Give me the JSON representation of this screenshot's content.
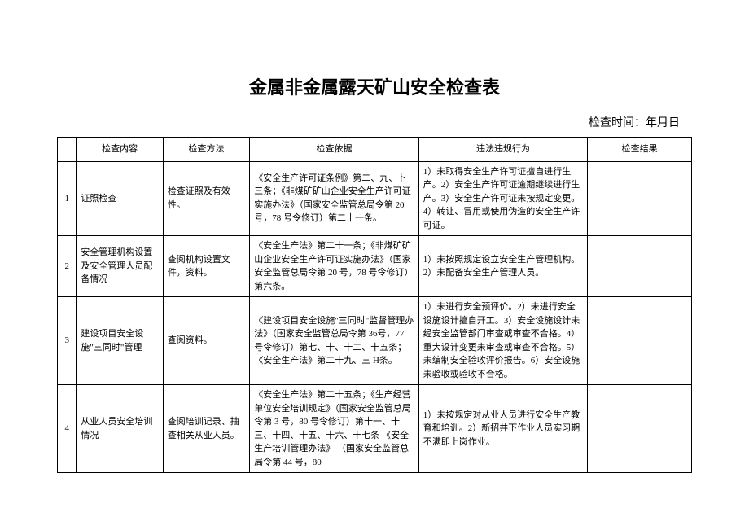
{
  "title": "金属非金属露天矿山安全检查表",
  "check_time_label": "检查时间：年月日",
  "table": {
    "headers": {
      "content": "检查内容",
      "method": "检查方法",
      "basis": "检查依据",
      "violation": "违法违规行为",
      "result": "检查结果"
    },
    "rows": [
      {
        "num": "1",
        "content": "证照检查",
        "method": "检查证照及有效性。",
        "basis": "《安全生产许可证条例》第二、九、卜三条；《非煤矿矿山企业安全生产许可证实施办法》（国家安全监管总局令第 20 号，78 号令修订）第二十一条。",
        "violation": "1）未取得安全生产许可证擅自进行生产。2）安全生产许可证逾期继续进行生产。3）安全生产许可证未按规定变更。4）转让、冒用或使用伪造的安全生产许可证。",
        "result": ""
      },
      {
        "num": "2",
        "content": "安全管理机构设置及安全管理人员配备情况",
        "method": "查阅机构设置文件，资料。",
        "basis": "《安全生产法》第二十一条；《非煤矿矿山企业安全生产许可证实施办法》（国家安全监管总局令第 20 号，78 号令修订）第六条。",
        "violation": "1）未按照规定设立安全生产管理机构。2）未配备安全生产管理人员。",
        "result": ""
      },
      {
        "num": "3",
        "content": "建设项目安全设施\"三同时\"管理",
        "method": "查阅资料。",
        "basis": "《建设项目安全设施\"三同时\"监督管理办法》（国家安全监管总局令第 36号，77 号令修订）第七、十、十二、十五条；《安全生产法》第二十九、三 H条。",
        "violation": "1）未进行安全预评价。2）未进行安全设施设计擅自开工。3）安全设施设计未经安全监管部门审查或审查不合格。4）重大设计变更未审查或审查不合格。5）未编制安全验收评价报告。6）安全设施未验收或验收不合格。",
        "result": ""
      },
      {
        "num": "4",
        "content": "从业人员安全培训情况",
        "method": "查阅培训记录、抽查相关从业人员。",
        "basis": "《安全生产法》第二十五条；《生产经营单位安全培训规定》（国家安全监管总局令第 3 号，80 号令修订）第十一、十三、十四、十五、十六、十七条  《安全生产培训管理办法》\n（国家安全监管总局令第 44 号，80",
        "violation": "1）未按规定对从业人员进行安全生产教育和培训。2）新招井下作业人员实习期不满即上岗作业。",
        "result": ""
      }
    ]
  }
}
